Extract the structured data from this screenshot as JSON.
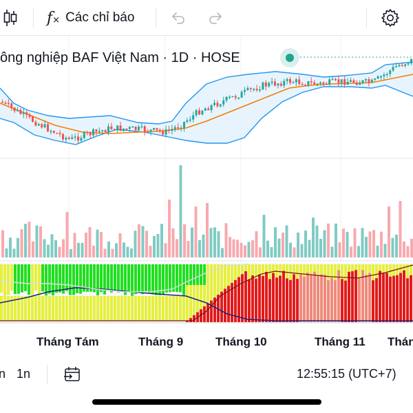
{
  "toolbar": {
    "indicators_label": "Các chỉ báo",
    "icons": [
      "candles-icon",
      "fx-icon",
      "undo-icon",
      "redo-icon",
      "settings-icon"
    ]
  },
  "chart": {
    "title": "ông nghiệp BAF Việt Nam · 1D · HOSE",
    "colors": {
      "up": "#26a69a",
      "down": "#ef5350",
      "bb_line": "#2196f3",
      "bb_fill": "#e3f2fd",
      "ma": "#f57c00",
      "vol_up": "#80cbc4",
      "vol_down": "#f8a9ae",
      "green": "#1ee01e",
      "yellow": "#e6f03c",
      "red": "#e31b1b",
      "salmon": "#f08a7a",
      "blue_line": "#1a237e"
    },
    "x_labels": [
      "Tháng Tám",
      "Tháng 9",
      "Tháng 10",
      "Tháng 11",
      "Thán"
    ]
  },
  "bottom": {
    "range_a": "n",
    "range_b": "1n",
    "time": "12:55:15 (UTC+7)"
  }
}
